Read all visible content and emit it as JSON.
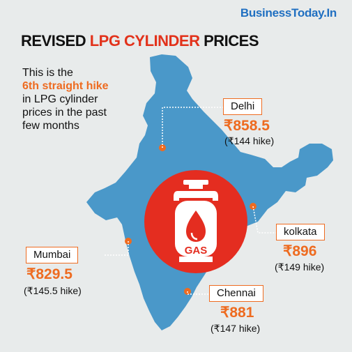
{
  "brand": "BusinessToday.In",
  "title": {
    "part1": "REVISED ",
    "part2": "LPG CYLINDER",
    "part3": " PRICES"
  },
  "intro": {
    "line1": "This is the",
    "highlight": "6th straight hike",
    "line2": "in LPG cylinder",
    "line3": "prices in the past",
    "line4": "few months"
  },
  "cities": [
    {
      "name": "Delhi",
      "price": "₹858.5",
      "hike": "(₹144 hike)"
    },
    {
      "name": "kolkata",
      "price": "₹896",
      "hike": "(₹149 hike)"
    },
    {
      "name": "Mumbai",
      "price": "₹829.5",
      "hike": "(₹145.5 hike)"
    },
    {
      "name": "Chennai",
      "price": "₹881",
      "hike": "(₹147 hike)"
    }
  ],
  "gas_label": "GAS",
  "colors": {
    "accent": "#ee6b20",
    "map": "#4a98c9",
    "circle": "#e42d20",
    "brand": "#1f6fc1"
  }
}
